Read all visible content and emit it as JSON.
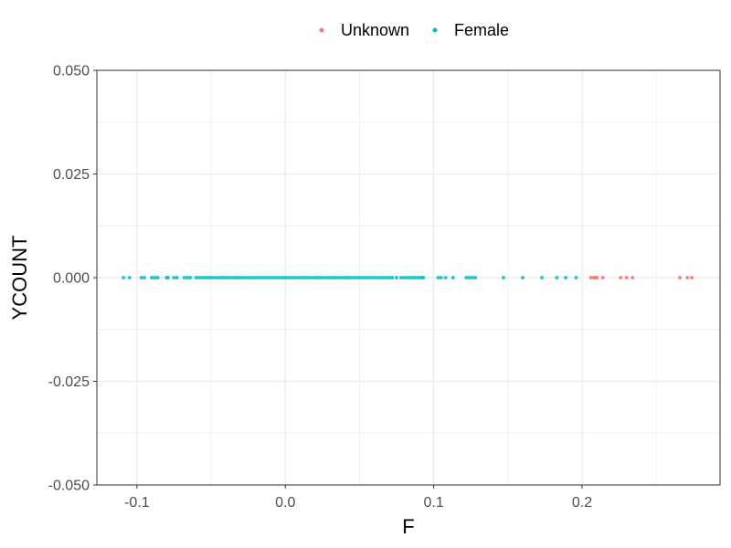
{
  "chart_data": {
    "type": "scatter",
    "xlabel": "F",
    "ylabel": "YCOUNT",
    "xlim": [
      -0.127,
      0.293
    ],
    "ylim": [
      -0.05,
      0.05
    ],
    "x_ticks": [
      -0.1,
      0.0,
      0.1,
      0.2
    ],
    "x_tick_labels": [
      "-0.1",
      "0.0",
      "0.1",
      "0.2"
    ],
    "y_ticks": [
      -0.05,
      -0.025,
      0.0,
      0.025,
      0.05
    ],
    "y_tick_labels": [
      "-0.050",
      "-0.025",
      "0.000",
      "0.025",
      "0.050"
    ],
    "grid": true,
    "legend_position": "top",
    "series": [
      {
        "name": "Unknown",
        "color": "#F8766D",
        "x": [
          0.206,
          0.208,
          0.209,
          0.21,
          0.214,
          0.226,
          0.23,
          0.234,
          0.266,
          0.271,
          0.274
        ],
        "y": [
          0,
          0,
          0,
          0,
          0,
          0,
          0,
          0,
          0,
          0,
          0
        ]
      },
      {
        "name": "Female",
        "color": "#00BFC4",
        "x": [
          -0.109,
          -0.105,
          -0.097,
          -0.095,
          -0.09,
          -0.088,
          -0.086,
          -0.08,
          -0.079,
          -0.075,
          -0.073,
          -0.068,
          -0.066,
          -0.064,
          -0.06,
          -0.058,
          -0.056,
          -0.054,
          -0.052,
          -0.05,
          -0.048,
          -0.046,
          -0.044,
          -0.042,
          -0.04,
          -0.038,
          -0.036,
          -0.034,
          -0.032,
          -0.03,
          -0.028,
          -0.026,
          -0.024,
          -0.022,
          -0.02,
          -0.018,
          -0.016,
          -0.014,
          -0.012,
          -0.01,
          -0.008,
          -0.006,
          -0.004,
          -0.002,
          0.0,
          0.002,
          0.004,
          0.006,
          0.008,
          0.01,
          0.012,
          0.014,
          0.016,
          0.018,
          0.02,
          0.022,
          0.024,
          0.026,
          0.028,
          0.03,
          0.032,
          0.034,
          0.036,
          0.038,
          0.04,
          0.042,
          0.044,
          0.046,
          0.048,
          0.05,
          0.052,
          0.054,
          0.056,
          0.058,
          0.06,
          0.062,
          0.064,
          0.066,
          0.068,
          0.07,
          0.072,
          0.075,
          0.078,
          0.08,
          0.082,
          0.084,
          0.086,
          0.088,
          0.09,
          0.092,
          0.093,
          0.103,
          0.105,
          0.108,
          0.113,
          0.122,
          0.124,
          0.126,
          0.128,
          0.147,
          0.16,
          0.173,
          0.183,
          0.189,
          0.196
        ],
        "y": [
          0,
          0,
          0,
          0,
          0,
          0,
          0,
          0,
          0,
          0,
          0,
          0,
          0,
          0,
          0,
          0,
          0,
          0,
          0,
          0,
          0,
          0,
          0,
          0,
          0,
          0,
          0,
          0,
          0,
          0,
          0,
          0,
          0,
          0,
          0,
          0,
          0,
          0,
          0,
          0,
          0,
          0,
          0,
          0,
          0,
          0,
          0,
          0,
          0,
          0,
          0,
          0,
          0,
          0,
          0,
          0,
          0,
          0,
          0,
          0,
          0,
          0,
          0,
          0,
          0,
          0,
          0,
          0,
          0,
          0,
          0,
          0,
          0,
          0,
          0,
          0,
          0,
          0,
          0,
          0,
          0,
          0,
          0,
          0,
          0,
          0,
          0,
          0,
          0,
          0,
          0,
          0,
          0,
          0,
          0,
          0,
          0,
          0,
          0,
          0,
          0,
          0,
          0,
          0,
          0
        ]
      }
    ]
  }
}
